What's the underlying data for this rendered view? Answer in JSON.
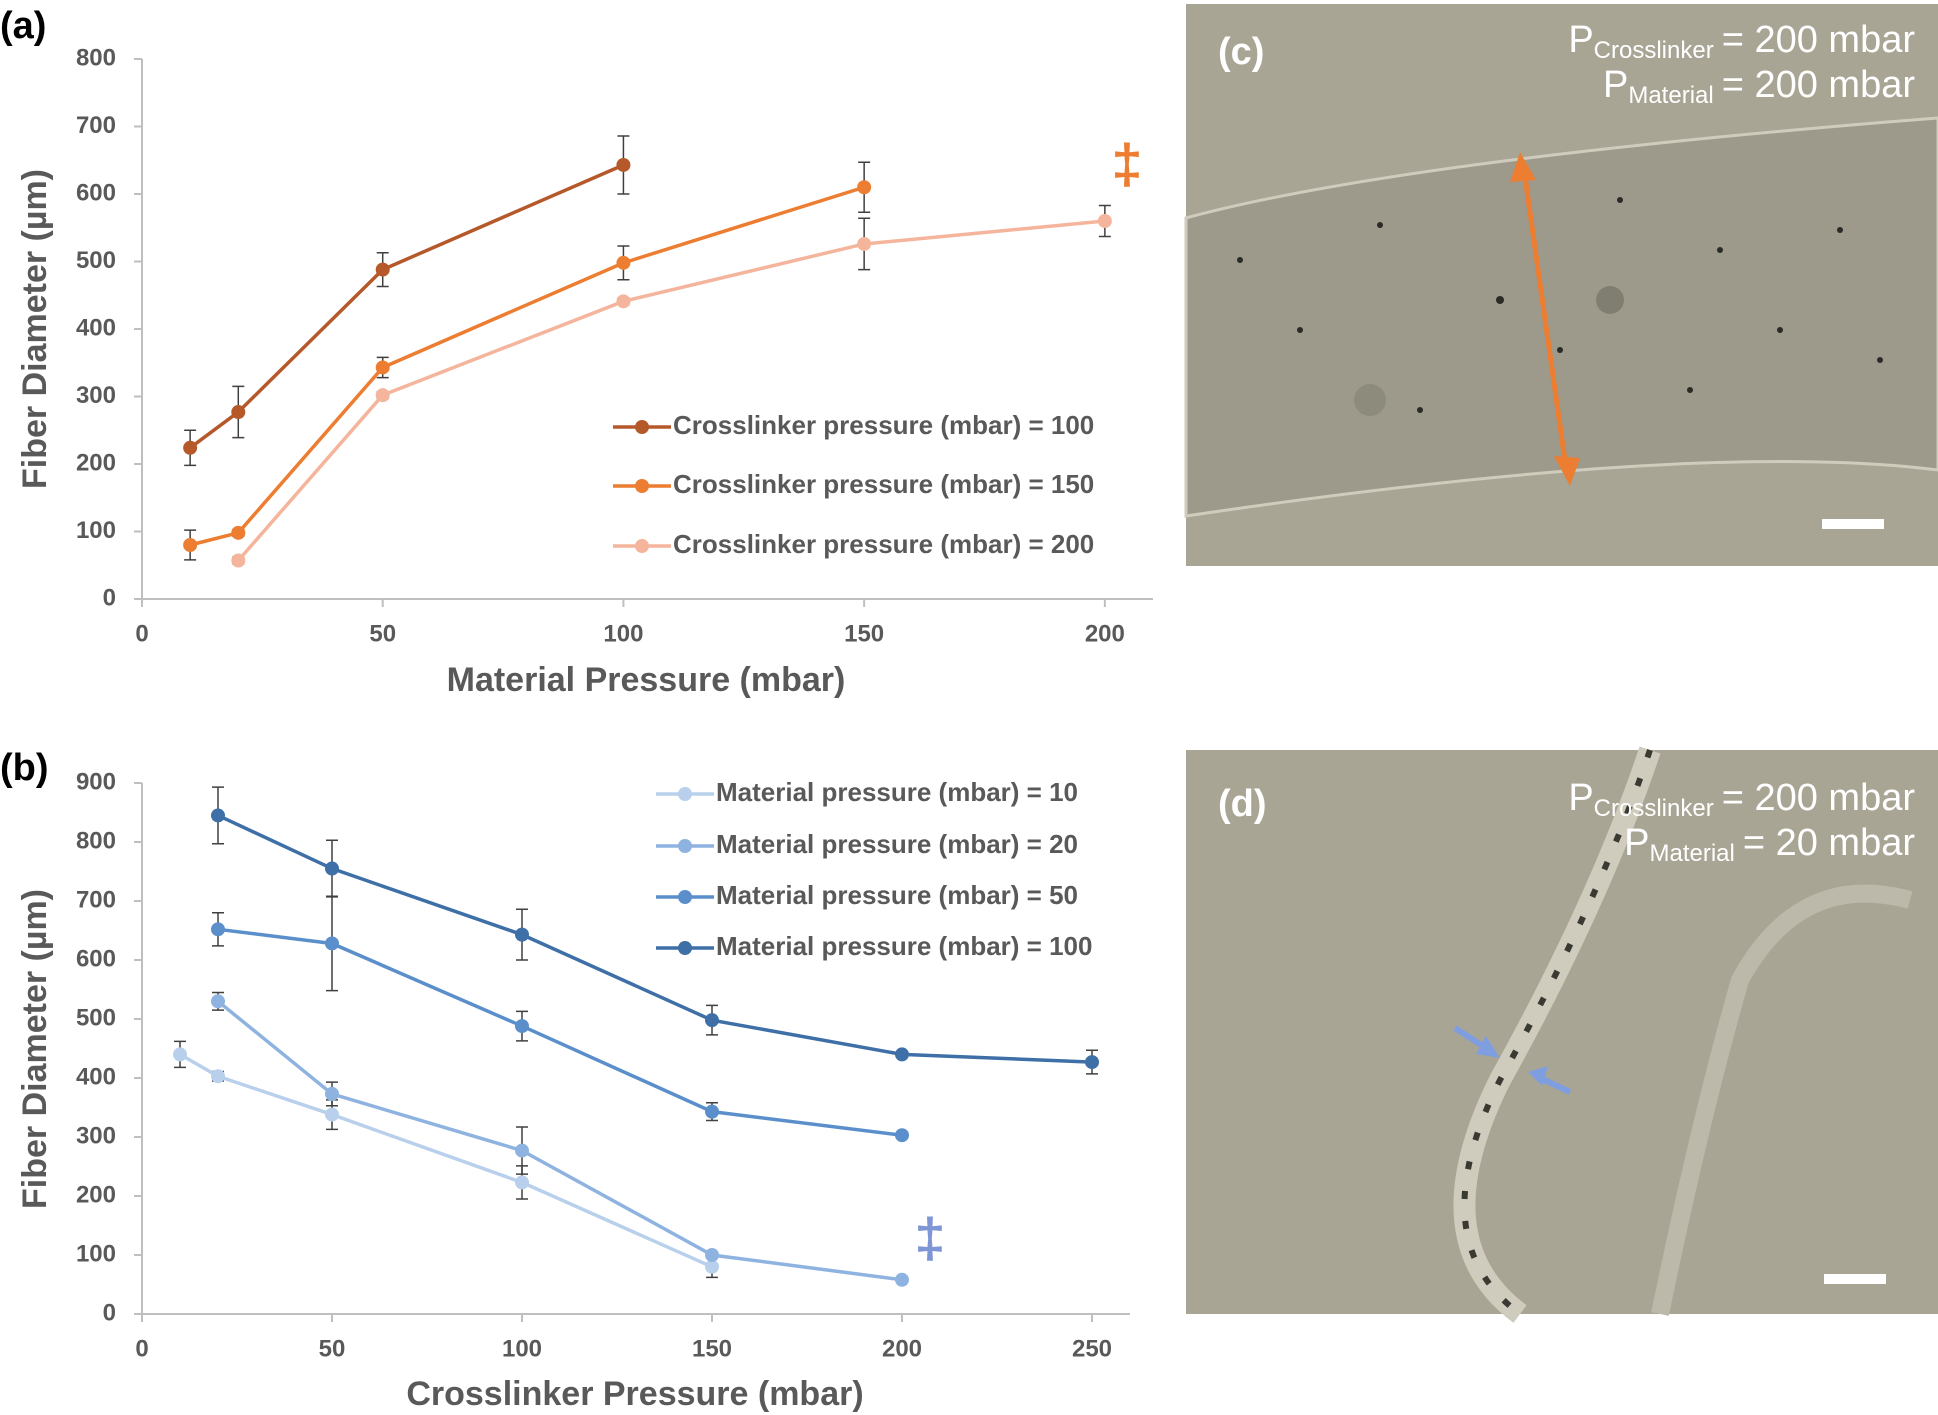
{
  "chart_data": [
    {
      "type": "line",
      "label": "(a)",
      "xlabel": "Material Pressure (mbar)",
      "ylabel": "Fiber Diameter (µm)",
      "xlim": [
        0,
        210
      ],
      "ylim": [
        0,
        800
      ],
      "xticks": [
        0,
        50,
        100,
        150,
        200
      ],
      "yticks": [
        0,
        100,
        200,
        300,
        400,
        500,
        600,
        700,
        800
      ],
      "grid": false,
      "series": [
        {
          "name": "Crosslinker pressure (mbar) = 100",
          "color": "#b5592a",
          "x": [
            10,
            20,
            50,
            100
          ],
          "values": [
            224,
            277,
            488,
            643
          ],
          "errors": [
            26,
            38,
            25,
            43
          ]
        },
        {
          "name": "Crosslinker pressure (mbar) = 150",
          "color": "#ec7d31",
          "x": [
            10,
            20,
            50,
            100,
            150
          ],
          "values": [
            80,
            98,
            343,
            498,
            610
          ],
          "errors": [
            22,
            5,
            15,
            25,
            37
          ]
        },
        {
          "name": "Crosslinker pressure (mbar) = 200",
          "color": "#f4b59c",
          "x": [
            20,
            50,
            100,
            150,
            200
          ],
          "values": [
            57,
            302,
            441,
            526,
            560
          ],
          "errors": [
            5,
            5,
            5,
            38,
            23
          ]
        }
      ],
      "annotations": [
        {
          "text": "‡",
          "color": "#ec7d31"
        }
      ]
    },
    {
      "type": "line",
      "label": "(b)",
      "xlabel": "Crosslinker Pressure (mbar)",
      "ylabel": "Fiber Diameter (µm)",
      "xlim": [
        0,
        260
      ],
      "ylim": [
        0,
        900
      ],
      "xticks": [
        0,
        50,
        100,
        150,
        200,
        250
      ],
      "yticks": [
        0,
        100,
        200,
        300,
        400,
        500,
        600,
        700,
        800,
        900
      ],
      "grid": false,
      "series": [
        {
          "name": "Material pressure (mbar) = 10",
          "color": "#b8d0ec",
          "x": [
            10,
            20,
            50,
            100,
            150
          ],
          "values": [
            440,
            403,
            338,
            223,
            80
          ],
          "errors": [
            22,
            8,
            25,
            28,
            18
          ]
        },
        {
          "name": "Material pressure (mbar) = 20",
          "color": "#8fb3e0",
          "x": [
            20,
            50,
            100,
            150,
            200
          ],
          "values": [
            530,
            373,
            277,
            100,
            58
          ],
          "errors": [
            15,
            20,
            40,
            5,
            5
          ]
        },
        {
          "name": "Material pressure (mbar) = 50",
          "color": "#5b8fcb",
          "x": [
            20,
            50,
            100,
            150,
            200
          ],
          "values": [
            652,
            628,
            488,
            343,
            303
          ],
          "errors": [
            28,
            80,
            25,
            15,
            5
          ]
        },
        {
          "name": "Material pressure (mbar) = 100",
          "color": "#3e6fa6",
          "x": [
            20,
            50,
            100,
            150,
            200,
            250
          ],
          "values": [
            845,
            755,
            643,
            498,
            440,
            427
          ],
          "errors": [
            48,
            48,
            43,
            25,
            5,
            20
          ]
        }
      ],
      "annotations": [
        {
          "text": "‡",
          "color": "#7f96d6"
        }
      ]
    }
  ],
  "images": [
    {
      "label": "(c)",
      "lines": [
        {
          "symbol": "P",
          "subscript": "Crosslinker",
          "text": "= 200 mbar"
        },
        {
          "symbol": "P",
          "subscript": "Material",
          "text": "= 200 mbar"
        }
      ]
    },
    {
      "label": "(d)",
      "lines": [
        {
          "symbol": "P",
          "subscript": "Crosslinker",
          "text": "= 200 mbar"
        },
        {
          "symbol": "P",
          "subscript": "Material",
          "text": "= 20 mbar"
        }
      ]
    }
  ]
}
